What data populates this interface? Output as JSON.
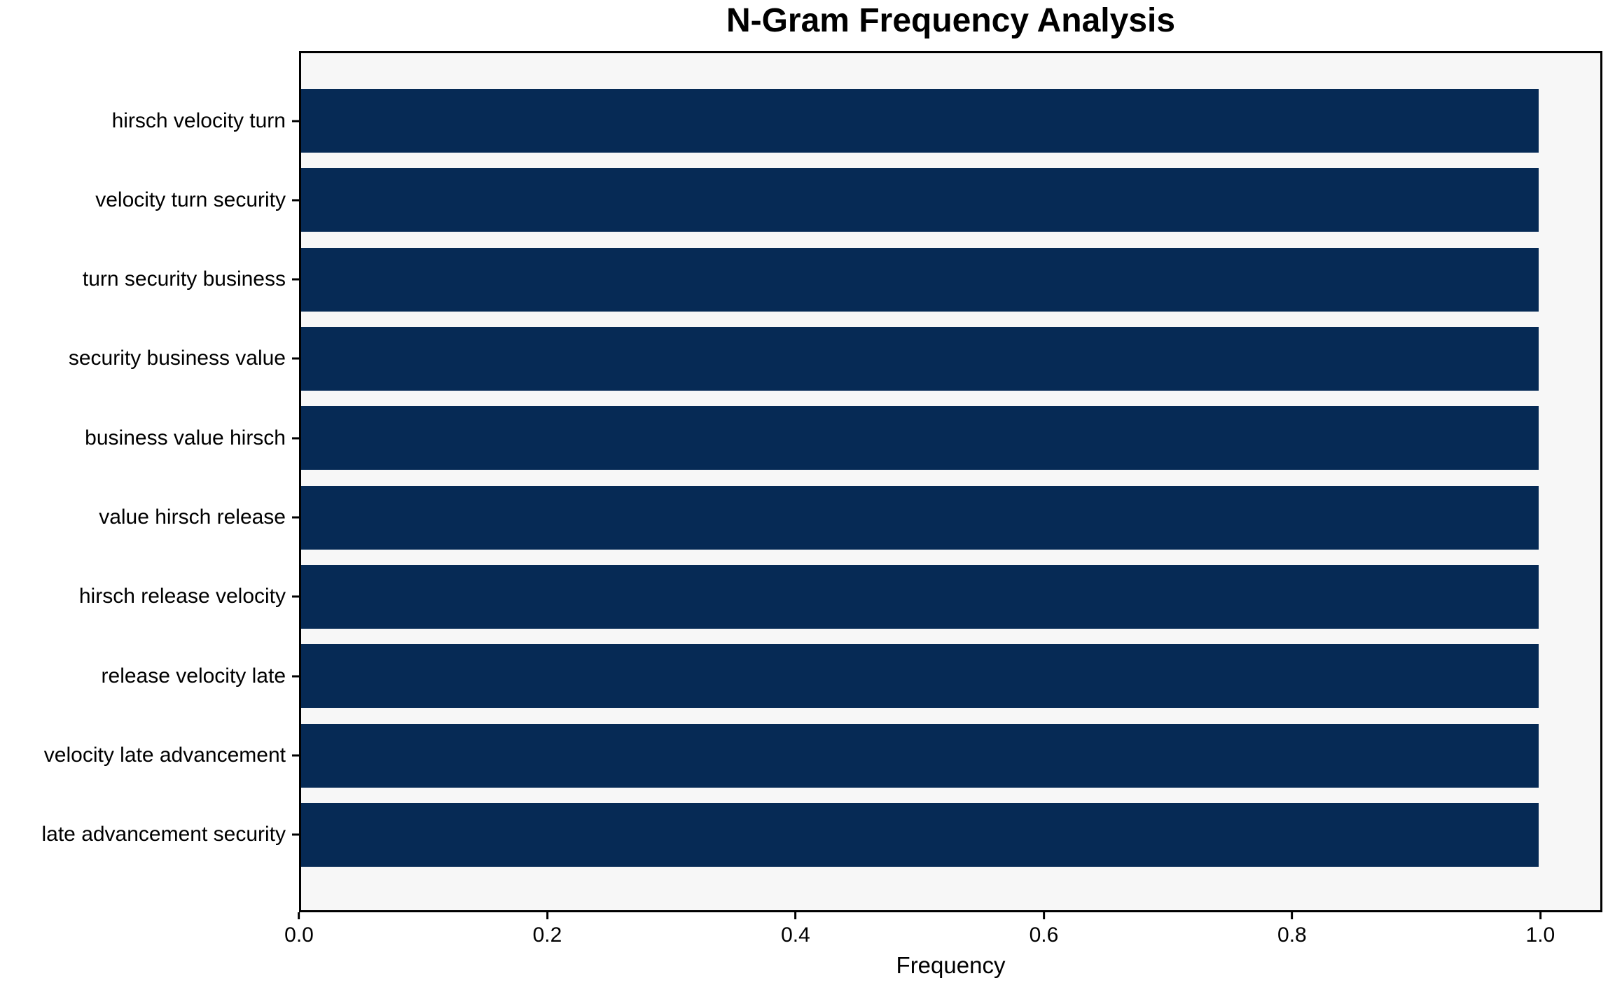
{
  "figure": {
    "background": "#ffffff"
  },
  "chart_data": {
    "type": "bar",
    "orientation": "horizontal",
    "title": "N-Gram Frequency Analysis",
    "xlabel": "Frequency",
    "ylabel": "",
    "categories": [
      "hirsch velocity turn",
      "velocity turn security",
      "turn security business",
      "security business value",
      "business value hirsch",
      "value hirsch release",
      "hirsch release velocity",
      "release velocity late",
      "velocity late advancement",
      "late advancement security"
    ],
    "values": [
      1.0,
      1.0,
      1.0,
      1.0,
      1.0,
      1.0,
      1.0,
      1.0,
      1.0,
      1.0
    ],
    "xlim": [
      0,
      1.05
    ],
    "xticks": [
      0.0,
      0.2,
      0.4,
      0.6,
      0.8,
      1.0
    ],
    "xtick_labels": [
      "0.0",
      "0.2",
      "0.4",
      "0.6",
      "0.8",
      "1.0"
    ],
    "grid": false,
    "legend": null,
    "bar_color": "#062a55",
    "plot_background": "#f7f7f7",
    "spine_color": "#000000",
    "text_color": "#000000"
  }
}
